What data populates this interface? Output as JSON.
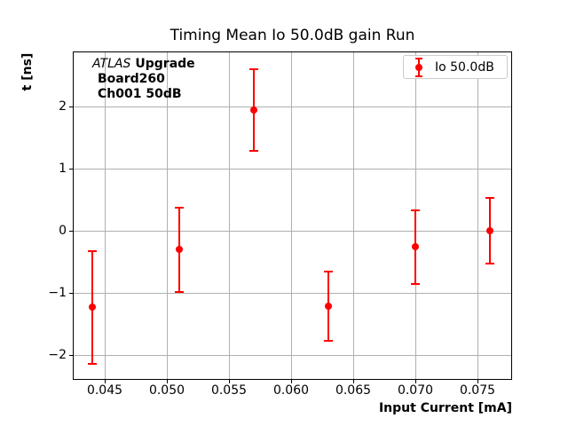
{
  "figure": {
    "annotation": {
      "line1_italic": "ATLAS",
      "line1_bold": "Upgrade",
      "line2": "Board260",
      "line3": "Ch001 50dB"
    },
    "legend": {
      "label": "Io 50.0dB"
    }
  },
  "chart_data": {
    "type": "scatter",
    "title": "Timing Mean Io 50.0dB gain Run",
    "xlabel": "Input Current [mA]",
    "ylabel": "t [ns]",
    "xlim": [
      0.0424,
      0.0778
    ],
    "ylim": [
      -2.4,
      2.89
    ],
    "xticks": {
      "values": [
        0.045,
        0.05,
        0.055,
        0.06,
        0.065,
        0.07,
        0.075
      ],
      "labels": [
        "0.045",
        "0.050",
        "0.055",
        "0.060",
        "0.065",
        "0.070",
        "0.075"
      ]
    },
    "yticks": {
      "values": [
        -2,
        -1,
        0,
        1,
        2
      ],
      "labels": [
        "−2",
        "−1",
        "0",
        "1",
        "2"
      ]
    },
    "grid": true,
    "legend_position": "upper right",
    "series": [
      {
        "name": "Io 50.0dB",
        "color": "#ff0000",
        "marker": "circle-with-errorbars",
        "x": [
          0.044,
          0.051,
          0.057,
          0.063,
          0.07,
          0.076
        ],
        "y": [
          -1.23,
          -0.3,
          1.95,
          -1.21,
          -0.26,
          0.0
        ],
        "yerr": [
          0.91,
          0.68,
          0.66,
          0.56,
          0.59,
          0.53
        ]
      }
    ],
    "colors": {
      "grid": "#b0b0b0",
      "axes": "#000000",
      "background": "#ffffff",
      "legend_border": "#cccccc"
    }
  }
}
